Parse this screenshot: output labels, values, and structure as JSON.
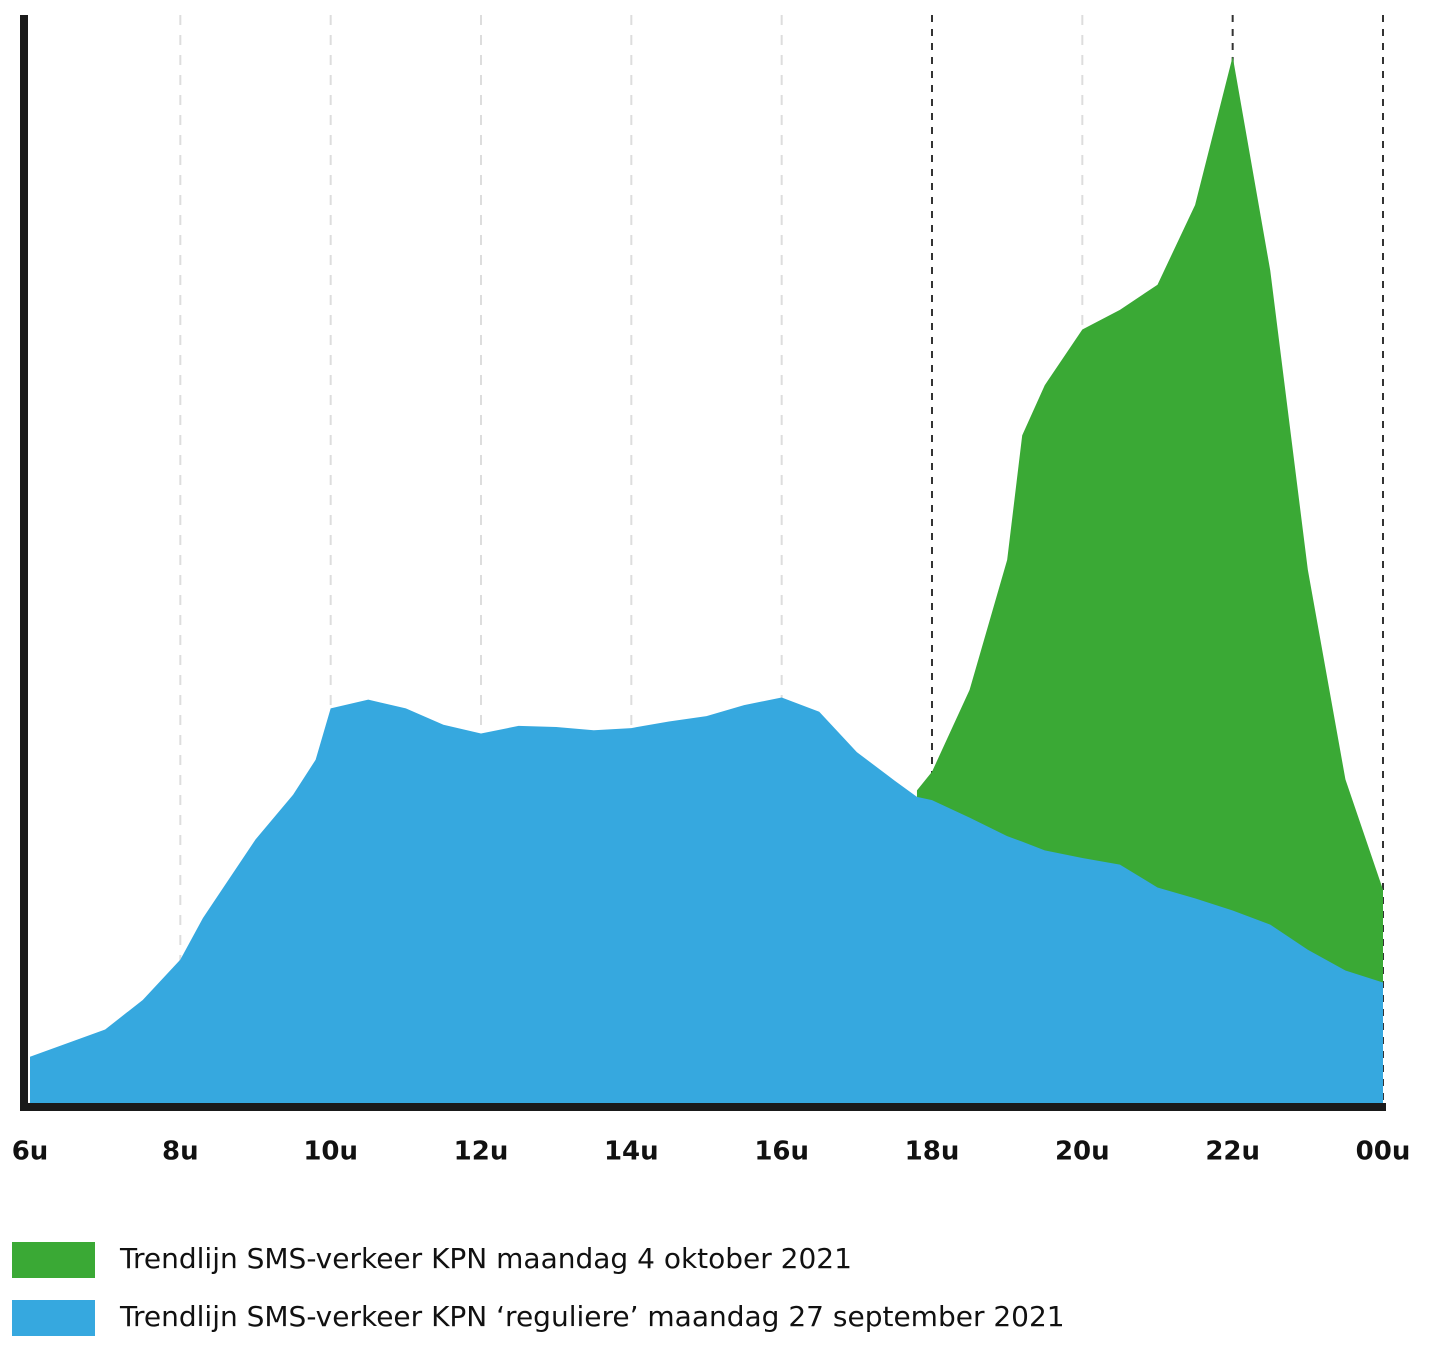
{
  "chart_data": {
    "type": "area",
    "x": [
      6,
      7,
      7.5,
      8,
      8.3,
      9,
      9.5,
      9.8,
      10,
      10.5,
      11,
      11.5,
      12,
      12.5,
      13,
      13.5,
      14,
      14.5,
      15,
      15.5,
      16,
      16.5,
      17,
      17.5,
      17.8,
      18,
      18.5,
      19,
      19.2,
      19.5,
      20,
      20.5,
      21,
      21.5,
      22,
      22.5,
      23,
      23.5,
      24
    ],
    "series": [
      {
        "name": "Trendlijn SMS-verkeer KPN  maandag 4 oktober 2021",
        "color": "#3aa935",
        "values": [
          null,
          null,
          null,
          null,
          null,
          null,
          null,
          null,
          null,
          null,
          null,
          null,
          null,
          null,
          null,
          null,
          null,
          null,
          null,
          null,
          null,
          null,
          null,
          null,
          29,
          30.7,
          38.2,
          50.1,
          61.5,
          66.1,
          71.2,
          73,
          75.3,
          82.6,
          96.2,
          76.6,
          49.2,
          30,
          19.9
        ]
      },
      {
        "name": "Trendlijn SMS-verkeer KPN ‘reguliere’  maandag 27 september 2021",
        "color": "#36a8df",
        "values": [
          4.6,
          7.1,
          9.8,
          13.5,
          17.3,
          24.5,
          28.6,
          31.8,
          36.5,
          37.3,
          36.5,
          35,
          34.2,
          34.9,
          34.8,
          34.5,
          34.7,
          35.3,
          35.8,
          36.8,
          37.5,
          36.2,
          32.5,
          29.9,
          28.4,
          28.1,
          26.5,
          24.8,
          24.3,
          23.5,
          22.8,
          22.2,
          20.1,
          19.1,
          18,
          16.7,
          14.4,
          12.5,
          11.4
        ]
      }
    ],
    "xlim": [
      6,
      24
    ],
    "xticks": [
      {
        "value": 6,
        "label": "6u"
      },
      {
        "value": 8,
        "label": "8u"
      },
      {
        "value": 10,
        "label": "10u"
      },
      {
        "value": 12,
        "label": "12u"
      },
      {
        "value": 14,
        "label": "14u"
      },
      {
        "value": 16,
        "label": "16u"
      },
      {
        "value": 18,
        "label": "18u"
      },
      {
        "value": 20,
        "label": "20u"
      },
      {
        "value": 22,
        "label": "22u"
      },
      {
        "value": 24,
        "label": "00u"
      }
    ],
    "dark_gridlines": [
      18,
      22,
      24
    ],
    "ylim": [
      0,
      100
    ],
    "grid": true,
    "legend": "bottom"
  }
}
